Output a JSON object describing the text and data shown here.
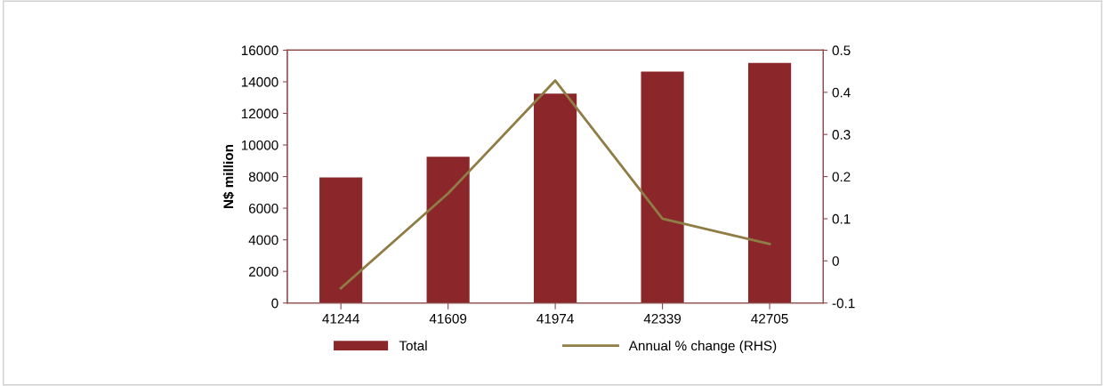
{
  "chart_data": {
    "type": "bar",
    "categories": [
      "41244",
      "41609",
      "41974",
      "42339",
      "42705"
    ],
    "ylabel": "N$ million",
    "series": [
      {
        "name": "Total",
        "color": "#8b272b",
        "values": [
          7950,
          9250,
          13250,
          14650,
          15200
        ]
      },
      {
        "name": "Annual % change (RHS)",
        "type": "line",
        "axis": "y2",
        "color": "#8f7d45",
        "values": [
          -0.065,
          0.16,
          0.428,
          0.1,
          0.04
        ]
      }
    ],
    "ylim": [
      0,
      16000
    ],
    "yticks": [
      0,
      2000,
      4000,
      6000,
      8000,
      10000,
      12000,
      14000,
      16000
    ],
    "y2lim": [
      -0.1,
      0.5
    ],
    "y2ticks": [
      {
        "value": -0.1,
        "label": "-0.1"
      },
      0,
      0.1,
      0.2,
      0.3,
      0.4,
      0.5
    ],
    "legend": "bottom",
    "grid": false,
    "marker": "none"
  }
}
